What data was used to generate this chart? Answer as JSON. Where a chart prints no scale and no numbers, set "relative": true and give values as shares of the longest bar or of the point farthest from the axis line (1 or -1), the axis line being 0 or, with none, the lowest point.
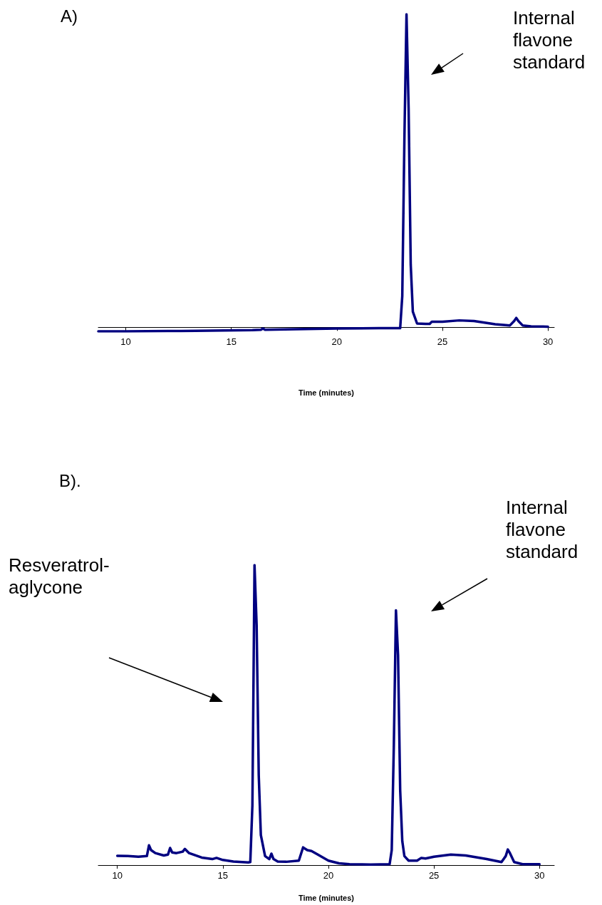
{
  "chart_data": [
    {
      "type": "line",
      "title": "A)",
      "xlabel": "Time (minutes)",
      "relative": true,
      "xlim": [
        8.7,
        30.3
      ],
      "xticks": [
        10,
        15,
        20,
        25,
        30
      ],
      "tick_labels": "x",
      "grid": false,
      "marker": "none",
      "line_style": "solid",
      "series": [
        {
          "color": "#000080",
          "x": [
            8.7,
            10,
            12,
            14,
            16,
            16.4,
            16.5,
            16.6,
            18,
            20,
            22,
            23.0,
            23.1,
            23.2,
            23.3,
            23.4,
            23.5,
            23.6,
            23.8,
            24.2,
            24.4,
            24.5,
            25,
            25.8,
            26.5,
            27.5,
            28.2,
            28.4,
            28.5,
            28.6,
            28.8,
            29.2,
            30
          ],
          "values": [
            -0.013,
            -0.013,
            -0.012,
            -0.011,
            -0.009,
            -0.008,
            -0.004,
            -0.008,
            -0.006,
            -0.004,
            -0.003,
            -0.003,
            0.1,
            0.6,
            1,
            0.7,
            0.2,
            0.05,
            0.012,
            0.011,
            0.011,
            0.018,
            0.018,
            0.022,
            0.02,
            0.01,
            0.006,
            0.02,
            0.03,
            0.02,
            0.006,
            0.003,
            0.002
          ]
        }
      ],
      "annotations": [
        "Internal flavone standard"
      ]
    },
    {
      "type": "line",
      "title": "B).",
      "xlabel": "Time (minutes)",
      "relative": true,
      "xlim": [
        9.1,
        30.7
      ],
      "xticks": [
        10,
        15,
        20,
        25,
        30
      ],
      "tick_labels": "x",
      "grid": false,
      "marker": "none",
      "line_style": "solid",
      "series": [
        {
          "color": "#000080",
          "x": [
            10,
            10.5,
            11,
            11.4,
            11.5,
            11.6,
            11.8,
            12.2,
            12.4,
            12.5,
            12.6,
            12.8,
            13.1,
            13.2,
            13.4,
            14,
            14.5,
            14.7,
            15,
            15.5,
            16.2,
            16.3,
            16.4,
            16.5,
            16.6,
            16.7,
            16.8,
            17,
            17.2,
            17.3,
            17.4,
            17.6,
            18,
            18.6,
            18.8,
            19,
            19.2,
            19.5,
            20,
            20.5,
            21,
            22,
            22.9,
            23.0,
            23.1,
            23.2,
            23.3,
            23.4,
            23.5,
            23.6,
            23.8,
            24.2,
            24.4,
            24.6,
            25,
            25.8,
            26.5,
            27.5,
            28.2,
            28.4,
            28.5,
            28.6,
            28.8,
            29.2,
            30
          ],
          "values": [
            0.031,
            0.03,
            0.028,
            0.03,
            0.066,
            0.05,
            0.04,
            0.032,
            0.035,
            0.057,
            0.042,
            0.04,
            0.045,
            0.054,
            0.04,
            0.025,
            0.02,
            0.024,
            0.017,
            0.012,
            0.009,
            0.01,
            0.2,
            1,
            0.8,
            0.3,
            0.1,
            0.03,
            0.02,
            0.038,
            0.02,
            0.012,
            0.011,
            0.015,
            0.059,
            0.05,
            0.047,
            0.035,
            0.015,
            0.006,
            0.003,
            0.002,
            0.003,
            0.05,
            0.4,
            0.849,
            0.7,
            0.25,
            0.08,
            0.03,
            0.015,
            0.015,
            0.024,
            0.022,
            0.028,
            0.035,
            0.032,
            0.02,
            0.01,
            0.03,
            0.052,
            0.04,
            0.01,
            0.003,
            0.003
          ]
        }
      ],
      "annotations": [
        "Resveratrol-aglycone",
        "Internal flavone standard"
      ]
    }
  ]
}
